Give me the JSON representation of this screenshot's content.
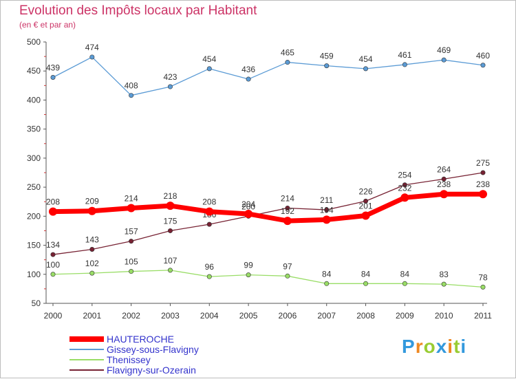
{
  "chart_data": {
    "type": "line",
    "title": "Evolution des Impôts locaux par Habitant",
    "subtitle": "(en € et par an)",
    "xlabel": "",
    "ylabel": "",
    "ylim": [
      50,
      500
    ],
    "yticks": [
      50,
      100,
      150,
      200,
      250,
      300,
      350,
      400,
      450,
      500
    ],
    "grid": false,
    "legend_position": "bottom-left",
    "categories": [
      "2000",
      "2001",
      "2002",
      "2003",
      "2004",
      "2005",
      "2006",
      "2007",
      "2008",
      "2009",
      "2010",
      "2011"
    ],
    "series": [
      {
        "name": "Gissey-sous-Flavigny",
        "color": "#5b9bd5",
        "emphasis": false,
        "values": [
          439,
          474,
          408,
          423,
          454,
          436,
          465,
          459,
          454,
          461,
          469,
          460
        ]
      },
      {
        "name": "Thenissey",
        "color": "#99dd66",
        "emphasis": false,
        "values": [
          100,
          102,
          105,
          107,
          96,
          99,
          97,
          84,
          84,
          84,
          83,
          78
        ]
      },
      {
        "name": "Flavigny-sur-Ozerain",
        "color": "#772233",
        "emphasis": false,
        "values": [
          134,
          143,
          157,
          175,
          186,
          200,
          214,
          211,
          226,
          254,
          264,
          275
        ]
      },
      {
        "name": "HAUTEROCHE",
        "color": "#ff0000",
        "emphasis": true,
        "values": [
          208,
          209,
          214,
          218,
          208,
          204,
          192,
          194,
          201,
          232,
          238,
          238
        ]
      }
    ],
    "legend": [
      "HAUTEROCHE",
      "Gissey-sous-Flavigny",
      "Thenissey",
      "Flavigny-sur-Ozerain"
    ]
  },
  "logo": {
    "letters": [
      "P",
      "r",
      "o",
      "x",
      "i",
      "t",
      "i"
    ],
    "colors": [
      "#3399dd",
      "#ee8822",
      "#99cc33",
      "#3399dd",
      "#ee8822",
      "#99cc33",
      "#3399dd"
    ]
  }
}
